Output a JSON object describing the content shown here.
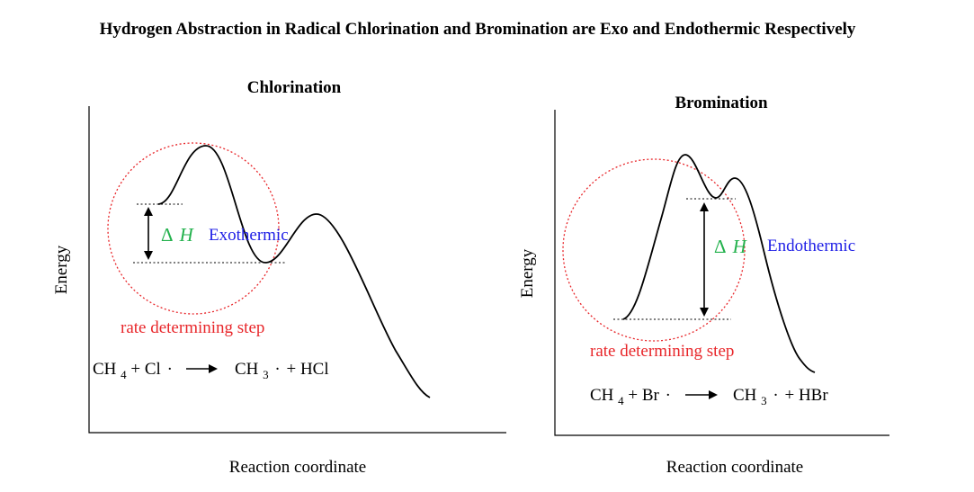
{
  "title": "Hydrogen Abstraction in Radical Chlorination and Bromination are Exo and Endothermic Respectively",
  "colors": {
    "curve": "#000000",
    "circle": "#e8262a",
    "delta_h": "#22b14c",
    "thermo_label": "#1f1fe6",
    "rds_label": "#e8262a"
  },
  "panels": {
    "chlorination": {
      "subtitle": "Chlorination",
      "ylabel": "Energy",
      "xlabel": "Reaction coordinate",
      "delta_symbol": "Δ",
      "delta_var": "H",
      "thermo": "Exothermic",
      "rds": "rate determining step",
      "equation": {
        "reactant_prefix": "CH",
        "reactant_sub": "4",
        "reactant_rest": " + Cl",
        "dot": "·",
        "product_prefix": "CH",
        "product_sub": "3",
        "product_rest": " + HCl"
      }
    },
    "bromination": {
      "subtitle": "Bromination",
      "ylabel": "Energy",
      "xlabel": "Reaction coordinate",
      "delta_symbol": "Δ",
      "delta_var": "H",
      "thermo": "Endothermic",
      "rds": "rate determining step",
      "equation": {
        "reactant_prefix": "CH",
        "reactant_sub": "4",
        "reactant_rest": " + Br",
        "dot": "·",
        "product_prefix": "CH",
        "product_sub": "3",
        "product_rest": " + HBr"
      }
    }
  }
}
